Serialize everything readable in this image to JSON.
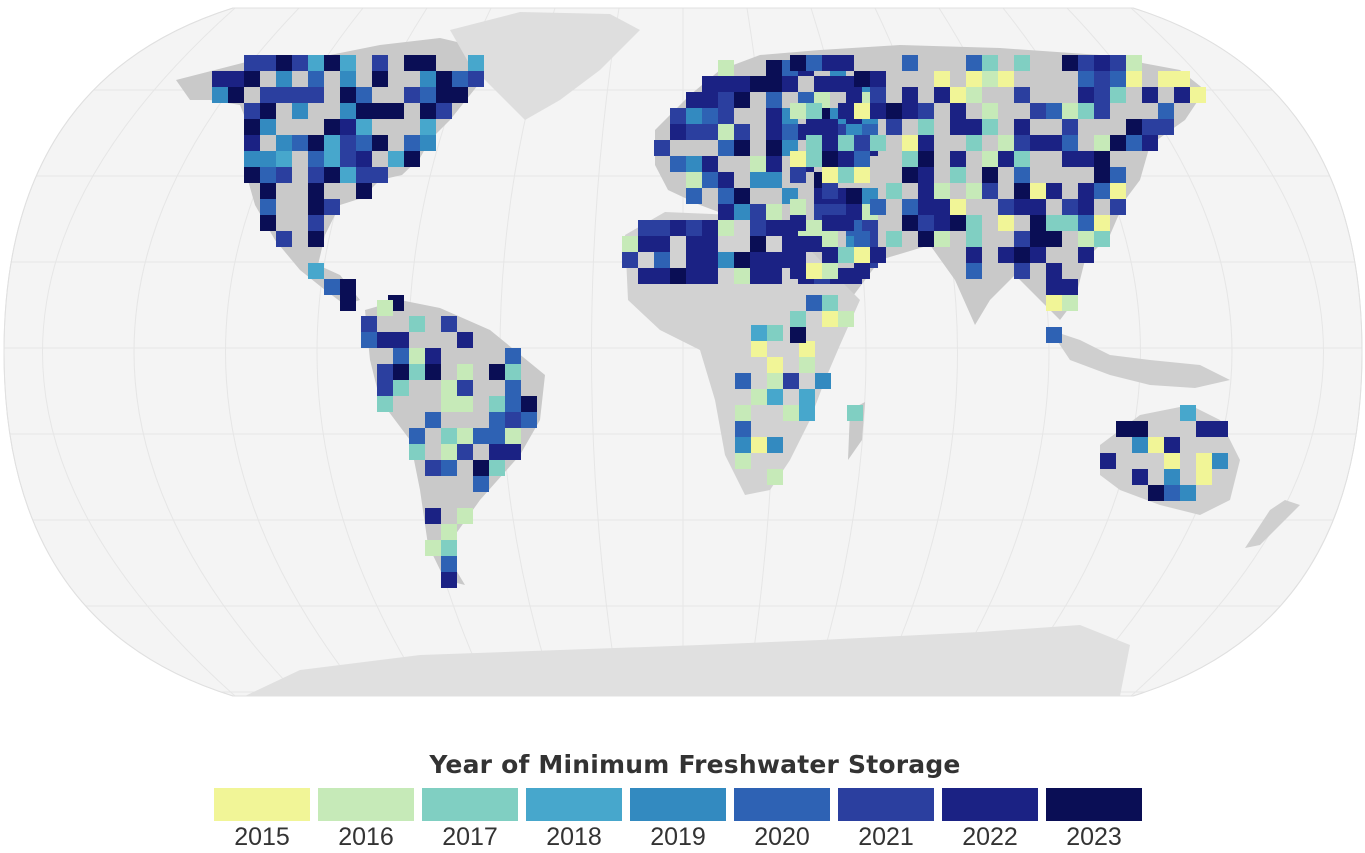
{
  "legend": {
    "title": "Year of Minimum Freshwater Storage",
    "items": [
      {
        "year": "2015",
        "color": "#f1f597"
      },
      {
        "year": "2016",
        "color": "#c6eab8"
      },
      {
        "year": "2017",
        "color": "#80cfc2"
      },
      {
        "year": "2018",
        "color": "#47a7cc"
      },
      {
        "year": "2019",
        "color": "#338ac0"
      },
      {
        "year": "2020",
        "color": "#2e62b4"
      },
      {
        "year": "2021",
        "color": "#2b3f9f"
      },
      {
        "year": "2022",
        "color": "#1b2284"
      },
      {
        "year": "2023",
        "color": "#0a0e55"
      }
    ]
  },
  "map": {
    "projection": "robinson",
    "ocean_color": "#f4f4f4",
    "land_color": "#c9c9c9",
    "ice_color": "#dedede"
  }
}
